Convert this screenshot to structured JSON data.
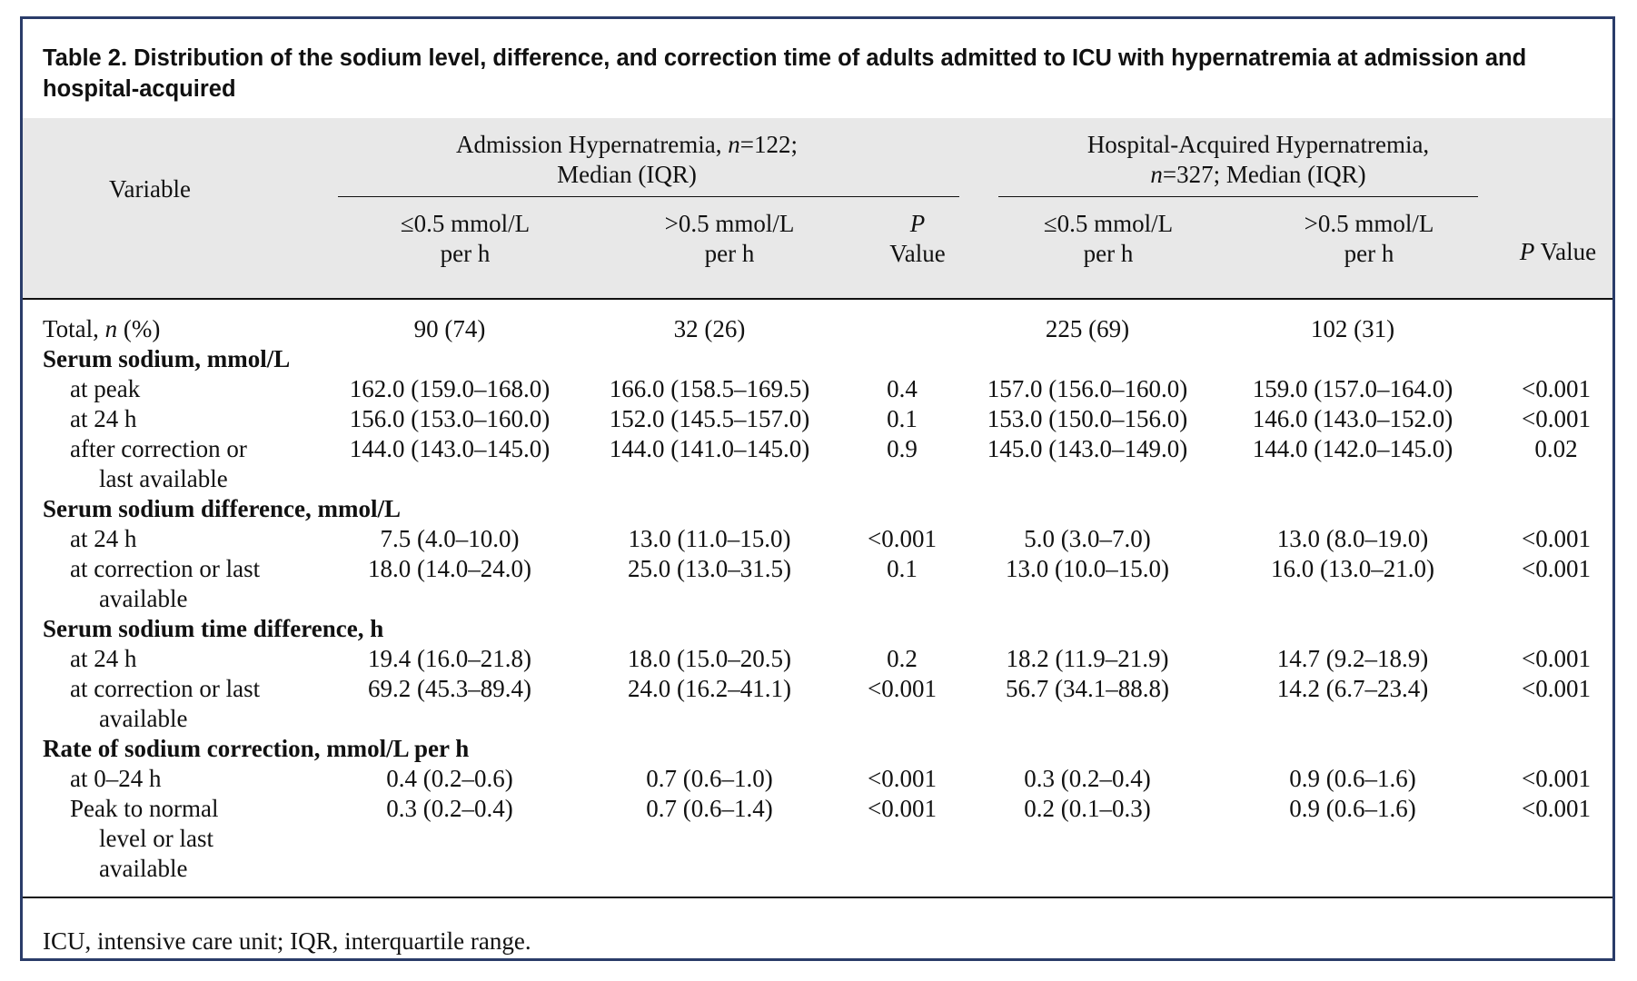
{
  "title": "Table 2.   Distribution of the sodium level, difference, and correction time of adults admitted to ICU with hypernatremia at admission and hospital-acquired",
  "header": {
    "variable": "Variable",
    "group1": {
      "line1_pre": "Admission Hypernatremia, ",
      "n_italic": "n",
      "line1_post": "=122;",
      "line2": "Median (IQR)"
    },
    "group2": {
      "line1": "Hospital-Acquired Hypernatremia,",
      "n_italic": "n",
      "line2_post": "=327; Median (IQR)"
    },
    "sub": {
      "le_l1": "≤0.5 mmol/L",
      "le_l2": "per h",
      "gt_l1": ">0.5 mmol/L",
      "gt_l2": "per h",
      "p_l1": "P",
      "p_l2": "Value",
      "pvalue_p": "P",
      "pvalue_word": " Value"
    }
  },
  "rows": [
    {
      "label_pre": "Total, ",
      "label_italic": "n",
      "label_post": " (%)",
      "type": "data",
      "c1": "90 (74)",
      "c2": "32 (26)",
      "p1": "",
      "c3": "225 (69)",
      "c4": "102 (31)",
      "p2": ""
    },
    {
      "label": "Serum sodium, mmol/L",
      "type": "section"
    },
    {
      "label": "at peak",
      "type": "data",
      "c1": "162.0 (159.0–168.0)",
      "c2": "166.0 (158.5–169.5)",
      "p1": "0.4",
      "c3": "157.0 (156.0–160.0)",
      "c4": "159.0 (157.0–164.0)",
      "p2": "<0.001"
    },
    {
      "label": "at 24 h",
      "type": "data",
      "c1": "156.0 (153.0–160.0)",
      "c2": "152.0 (145.5–157.0)",
      "p1": "0.1",
      "c3": "153.0 (150.0–156.0)",
      "c4": "146.0 (143.0–152.0)",
      "p2": "<0.001"
    },
    {
      "label": "after correction or",
      "label2": "last available",
      "type": "data",
      "c1": "144.0 (143.0–145.0)",
      "c2": "144.0 (141.0–145.0)",
      "p1": "0.9",
      "c3": "145.0 (143.0–149.0)",
      "c4": "144.0 (142.0–145.0)",
      "p2": "0.02"
    },
    {
      "label": "Serum sodium difference, mmol/L",
      "type": "section"
    },
    {
      "label": "at 24 h",
      "type": "data",
      "c1": "7.5 (4.0–10.0)",
      "c2": "13.0 (11.0–15.0)",
      "p1": "<0.001",
      "c3": "5.0 (3.0–7.0)",
      "c4": "13.0 (8.0–19.0)",
      "p2": "<0.001"
    },
    {
      "label": "at correction or last",
      "label2": "available",
      "type": "data",
      "c1": "18.0 (14.0–24.0)",
      "c2": "25.0 (13.0–31.5)",
      "p1": "0.1",
      "c3": "13.0 (10.0–15.0)",
      "c4": "16.0 (13.0–21.0)",
      "p2": "<0.001"
    },
    {
      "label": "Serum sodium time difference, h",
      "type": "section"
    },
    {
      "label": "at 24 h",
      "type": "data",
      "c1": "19.4 (16.0–21.8)",
      "c2": "18.0 (15.0–20.5)",
      "p1": "0.2",
      "c3": "18.2 (11.9–21.9)",
      "c4": "14.7 (9.2–18.9)",
      "p2": "<0.001"
    },
    {
      "label": "at correction or last",
      "label2": "available",
      "type": "data",
      "c1": "69.2 (45.3–89.4)",
      "c2": "24.0 (16.2–41.1)",
      "p1": "<0.001",
      "c3": "56.7 (34.1–88.8)",
      "c4": "14.2 (6.7–23.4)",
      "p2": "<0.001"
    },
    {
      "label": "Rate of sodium correction, mmol/L per h",
      "type": "section"
    },
    {
      "label": "at 0–24 h",
      "type": "data",
      "c1": "0.4 (0.2–0.6)",
      "c2": "0.7 (0.6–1.0)",
      "p1": "<0.001",
      "c3": "0.3 (0.2–0.4)",
      "c4": "0.9 (0.6–1.6)",
      "p2": "<0.001"
    },
    {
      "label": "Peak to normal",
      "label2": "level or last",
      "label3": "available",
      "type": "data",
      "c1": "0.3 (0.2–0.4)",
      "c2": "0.7 (0.6–1.4)",
      "p1": "<0.001",
      "c3": "0.2 (0.1–0.3)",
      "c4": "0.9 (0.6–1.6)",
      "p2": "<0.001"
    }
  ],
  "footnote": "ICU, intensive care unit; IQR, interquartile range."
}
